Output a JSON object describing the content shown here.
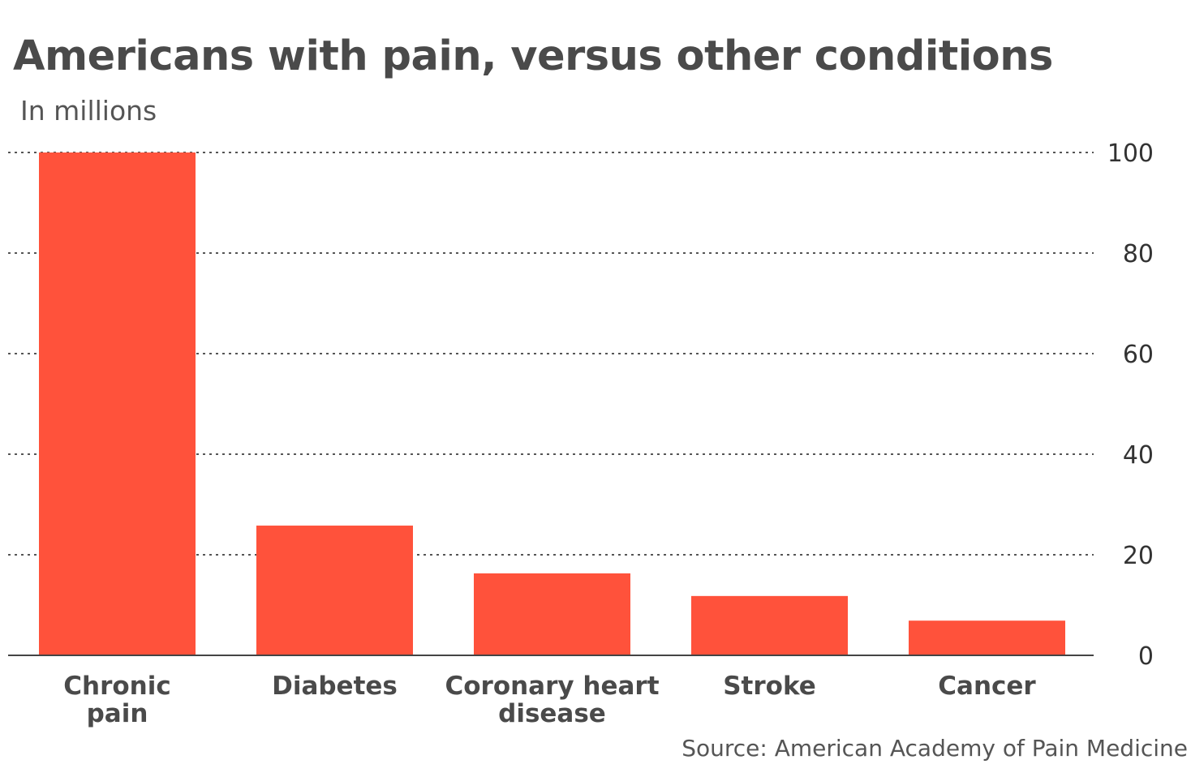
{
  "chart_data": {
    "type": "bar",
    "title": "Americans with pain, versus other conditions",
    "subtitle": "In millions",
    "source": "Source: American Academy of Pain Medicine",
    "categories": [
      [
        "Chronic",
        "pain"
      ],
      [
        "Diabetes"
      ],
      [
        "Coronary heart",
        "disease"
      ],
      [
        "Stroke"
      ],
      [
        "Cancer"
      ]
    ],
    "values": [
      100,
      25.8,
      16.3,
      11.8,
      6.9
    ],
    "ylim": [
      0,
      100
    ],
    "yticks": [
      0,
      20,
      40,
      60,
      80,
      100
    ],
    "y_axis_side": "right",
    "grid": true,
    "grid_style": "dotted",
    "bar_color": "#ff523b",
    "grid_color": "#555555",
    "axis_color": "#444444"
  }
}
